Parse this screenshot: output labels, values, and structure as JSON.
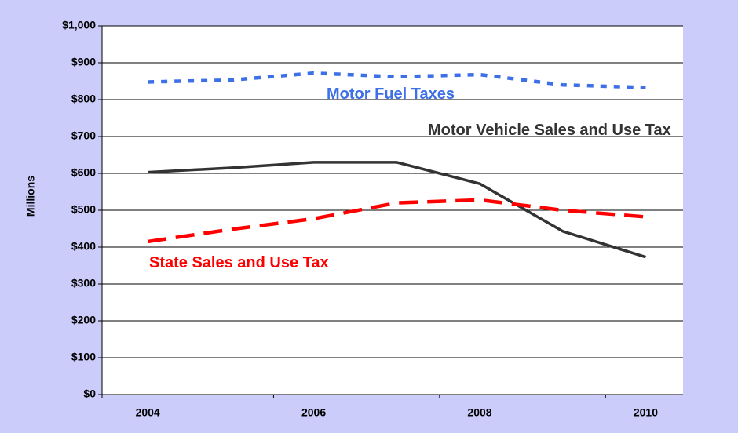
{
  "chart_data": {
    "type": "line",
    "y_label": "Millions",
    "categories": [
      "2004",
      null,
      "2006",
      null,
      "2008",
      null,
      "2010"
    ],
    "series": [
      {
        "name": "Motor Fuel Taxes",
        "color": "#3d6fe6",
        "values": [
          848,
          853,
          872,
          862,
          868,
          840,
          833
        ]
      },
      {
        "name": "Motor Vehicle Sales and Use Tax",
        "color": "#333333",
        "values": [
          603,
          615,
          630,
          630,
          572,
          443,
          373
        ]
      },
      {
        "name": "State Sales and Use Tax",
        "color": "#ff0000",
        "values": [
          415,
          448,
          477,
          520,
          528,
          500,
          482
        ]
      }
    ],
    "ylim": [
      0,
      1000
    ],
    "yticks": [
      {
        "value": 0,
        "label": "$0"
      },
      {
        "value": 100,
        "label": "$100"
      },
      {
        "value": 200,
        "label": "$200"
      },
      {
        "value": 300,
        "label": "$300"
      },
      {
        "value": 400,
        "label": "$400"
      },
      {
        "value": 500,
        "label": "$500"
      },
      {
        "value": 600,
        "label": "$600"
      },
      {
        "value": 700,
        "label": "$700"
      },
      {
        "value": 800,
        "label": "$800"
      },
      {
        "value": 900,
        "label": "$900"
      },
      {
        "value": 1000,
        "label": "$1,000"
      }
    ],
    "grid": true
  }
}
